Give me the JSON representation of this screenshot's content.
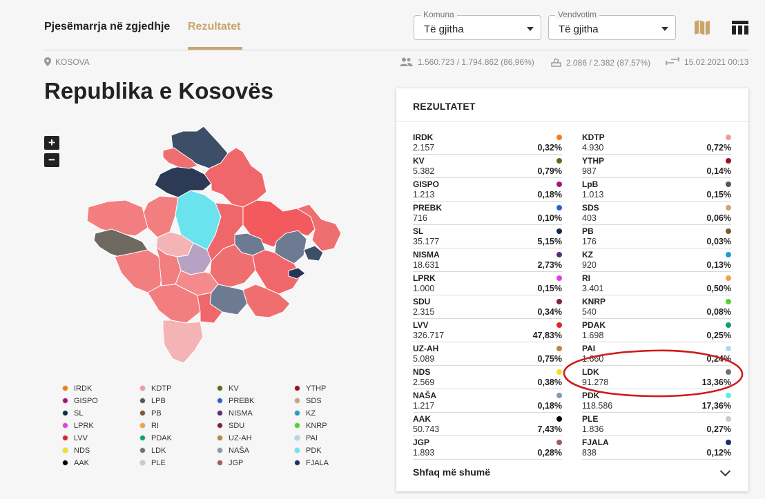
{
  "nav": {
    "tab_participation": "Pjesëmarrja në zgjedhje",
    "tab_results": "Rezultatet"
  },
  "filters": {
    "municipality": {
      "label": "Komuna",
      "value": "Të gjitha"
    },
    "polling_center": {
      "label": "Vendvotim",
      "value": "Të gjitha"
    }
  },
  "info": {
    "location": "KOSOVA",
    "voters": "1.560.723 / 1.794.862 (86,96%)",
    "stations": "2.086 / 2.382 (87,57%)",
    "updated": "15.02.2021 00:13"
  },
  "title": "Republika e Kosovës",
  "zoom": {
    "in": "+",
    "out": "−"
  },
  "colors": {
    "accent": "#c8a56a",
    "annotation": "#d01c1c"
  },
  "results": {
    "heading": "REZULTATET",
    "show_more": "Shfaq më shumë",
    "left": [
      {
        "name": "IRDK",
        "votes": "2.157",
        "pct": "0,32%",
        "color": "#f07d1e"
      },
      {
        "name": "KV",
        "votes": "5.382",
        "pct": "0,79%",
        "color": "#5e6d1c"
      },
      {
        "name": "GISPO",
        "votes": "1.213",
        "pct": "0,18%",
        "color": "#a3157c"
      },
      {
        "name": "PREBK",
        "votes": "716",
        "pct": "0,10%",
        "color": "#2e5fd6"
      },
      {
        "name": "SL",
        "votes": "35.177",
        "pct": "5,15%",
        "color": "#13294a"
      },
      {
        "name": "NISMA",
        "votes": "18.631",
        "pct": "2,73%",
        "color": "#5a2c7a"
      },
      {
        "name": "LPRK",
        "votes": "1.000",
        "pct": "0,15%",
        "color": "#e33fe0"
      },
      {
        "name": "SDU",
        "votes": "2.315",
        "pct": "0,34%",
        "color": "#7c2345"
      },
      {
        "name": "LVV",
        "votes": "326.717",
        "pct": "47,83%",
        "color": "#e0242a"
      },
      {
        "name": "UZ-AH",
        "votes": "5.089",
        "pct": "0,75%",
        "color": "#b8864a"
      },
      {
        "name": "NDS",
        "votes": "2.569",
        "pct": "0,38%",
        "color": "#f2e21a"
      },
      {
        "name": "NAŠA",
        "votes": "1.217",
        "pct": "0,18%",
        "color": "#8899b0"
      },
      {
        "name": "AAK",
        "votes": "50.743",
        "pct": "7,43%",
        "color": "#000000"
      },
      {
        "name": "JGP",
        "votes": "1.893",
        "pct": "0,28%",
        "color": "#a45a5a"
      }
    ],
    "right": [
      {
        "name": "KDTP",
        "votes": "4.930",
        "pct": "0,72%",
        "color": "#f39aa0"
      },
      {
        "name": "YTHP",
        "votes": "987",
        "pct": "0,14%",
        "color": "#9b1024"
      },
      {
        "name": "LpB",
        "votes": "1.013",
        "pct": "0,15%",
        "color": "#555555"
      },
      {
        "name": "SDS",
        "votes": "403",
        "pct": "0,06%",
        "color": "#c8a57a"
      },
      {
        "name": "PB",
        "votes": "176",
        "pct": "0,03%",
        "color": "#7a5c2e"
      },
      {
        "name": "KZ",
        "votes": "920",
        "pct": "0,13%",
        "color": "#1aa0cc"
      },
      {
        "name": "RI",
        "votes": "3.401",
        "pct": "0,50%",
        "color": "#f2a24a"
      },
      {
        "name": "KNRP",
        "votes": "540",
        "pct": "0,08%",
        "color": "#56d12a"
      },
      {
        "name": "PDAK",
        "votes": "1.698",
        "pct": "0,25%",
        "color": "#0aa36b"
      },
      {
        "name": "PAI",
        "votes": "1.660",
        "pct": "0,24%",
        "color": "#a8dbe8"
      },
      {
        "name": "LDK",
        "votes": "91.278",
        "pct": "13,36%",
        "color": "#707070"
      },
      {
        "name": "PDK",
        "votes": "118.586",
        "pct": "17,36%",
        "color": "#66e6f0"
      },
      {
        "name": "PLE",
        "votes": "1.836",
        "pct": "0,27%",
        "color": "#c9c9c9"
      },
      {
        "name": "FJALA",
        "votes": "838",
        "pct": "0,12%",
        "color": "#1a2e6a"
      }
    ]
  },
  "legend": [
    {
      "name": "IRDK",
      "color": "#f07d1e"
    },
    {
      "name": "KDTP",
      "color": "#f39aa0"
    },
    {
      "name": "KV",
      "color": "#5e6d1c"
    },
    {
      "name": "YTHP",
      "color": "#9b1024"
    },
    {
      "name": "GISPO",
      "color": "#a3157c"
    },
    {
      "name": "LPB",
      "color": "#555555"
    },
    {
      "name": "PREBK",
      "color": "#2e5fd6"
    },
    {
      "name": "SDS",
      "color": "#c8a57a"
    },
    {
      "name": "SL",
      "color": "#13294a"
    },
    {
      "name": "PB",
      "color": "#7a5c2e"
    },
    {
      "name": "NISMA",
      "color": "#5a2c7a"
    },
    {
      "name": "KZ",
      "color": "#1aa0cc"
    },
    {
      "name": "LPRK",
      "color": "#e33fe0"
    },
    {
      "name": "RI",
      "color": "#f2a24a"
    },
    {
      "name": "SDU",
      "color": "#7c2345"
    },
    {
      "name": "KNRP",
      "color": "#56d12a"
    },
    {
      "name": "LVV",
      "color": "#e0242a"
    },
    {
      "name": "PDAK",
      "color": "#0aa36b"
    },
    {
      "name": "UZ-AH",
      "color": "#b8864a"
    },
    {
      "name": "PAI",
      "color": "#a8dbe8"
    },
    {
      "name": "NDS",
      "color": "#f2e21a"
    },
    {
      "name": "LDK",
      "color": "#707070"
    },
    {
      "name": "NAŠA",
      "color": "#8899b0"
    },
    {
      "name": "PDK",
      "color": "#66e6f0"
    },
    {
      "name": "AAK",
      "color": "#000000"
    },
    {
      "name": "PLE",
      "color": "#c9c9c9"
    },
    {
      "name": "JGP",
      "color": "#a45a5a"
    },
    {
      "name": "FJALA",
      "color": "#1a2e6a"
    }
  ]
}
